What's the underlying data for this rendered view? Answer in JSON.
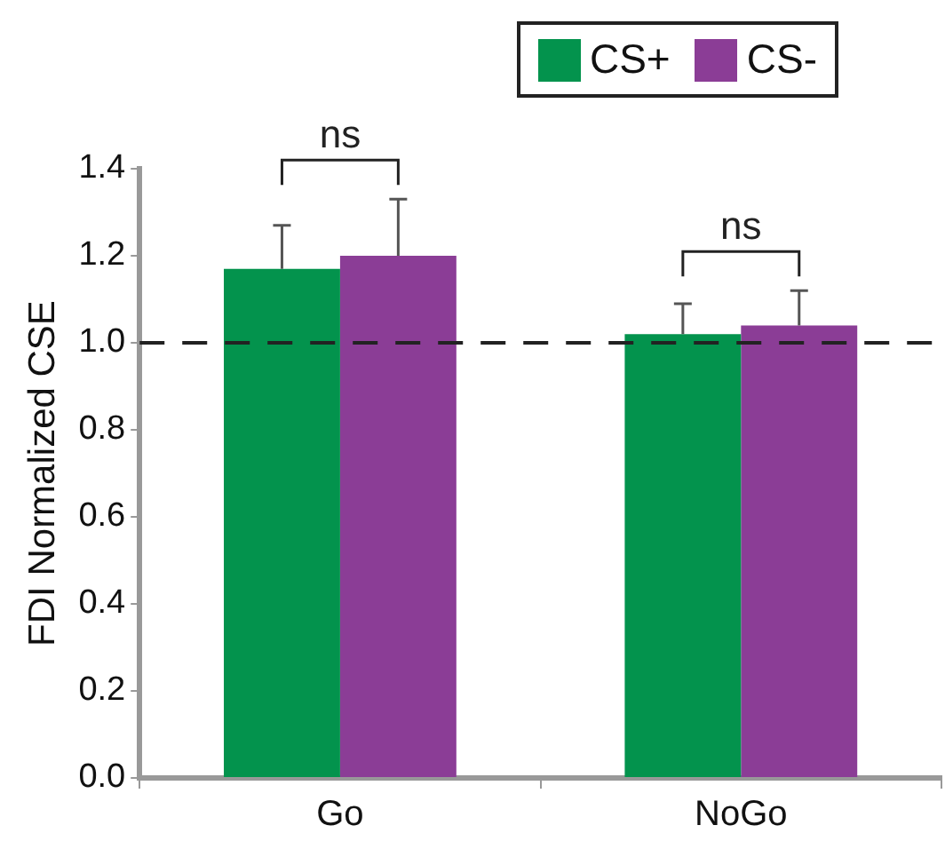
{
  "chart_data": {
    "type": "bar",
    "ylabel": "FDI Normalized CSE",
    "categories": [
      "Go",
      "NoGo"
    ],
    "series": [
      {
        "name": "CS+",
        "color": "#03934d",
        "values": [
          1.17,
          1.02
        ],
        "errors": [
          [
            1.17,
            1.27
          ],
          [
            1.02,
            1.09
          ]
        ]
      },
      {
        "name": "CS-",
        "color": "#8b3d96",
        "values": [
          1.2,
          1.04
        ],
        "errors": [
          [
            1.2,
            1.33
          ],
          [
            1.04,
            1.12
          ]
        ]
      }
    ],
    "ylim": [
      0,
      1.4
    ],
    "yticks": [
      {
        "value": 0,
        "label": "0.0"
      },
      {
        "value": 0.2,
        "label": "0.2"
      },
      {
        "value": 0.4,
        "label": "0.4"
      },
      {
        "value": 0.6,
        "label": "0.6"
      },
      {
        "value": 0.8,
        "label": "0.8"
      },
      {
        "value": 1,
        "label": "1.0"
      },
      {
        "value": 1.2,
        "label": "1.2"
      },
      {
        "value": 1.4,
        "label": "1.4"
      }
    ],
    "ref_lines": [
      {
        "axis": "y",
        "value": 1,
        "color": "#222222",
        "line_style": "dashed"
      }
    ],
    "annotations": [
      "ns",
      "ns"
    ],
    "grid": false,
    "legend": "top right"
  }
}
